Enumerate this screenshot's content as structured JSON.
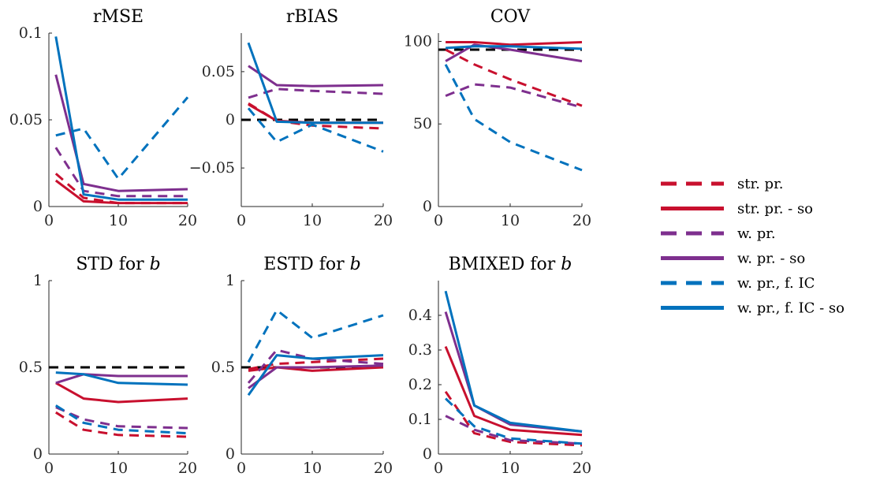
{
  "colors": {
    "str": "#c8102e",
    "w": "#7e2f8e",
    "ic": "#0072bd",
    "ref": "#000000"
  },
  "legend": [
    {
      "label": "str. pr.",
      "color": "str",
      "dash": true
    },
    {
      "label": "str. pr. - so",
      "color": "str",
      "dash": false
    },
    {
      "label": "w. pr.",
      "color": "w",
      "dash": true
    },
    {
      "label": "w. pr. - so",
      "color": "w",
      "dash": false
    },
    {
      "label": "w. pr., f. IC",
      "color": "ic",
      "dash": true
    },
    {
      "label": "w. pr., f. IC - so",
      "color": "ic",
      "dash": false
    }
  ],
  "chart_data": [
    {
      "type": "line",
      "title": "rMSE",
      "title_italic": "",
      "x": [
        1,
        5,
        10,
        20
      ],
      "xlim": [
        0,
        20
      ],
      "xticks": [
        0,
        10,
        20
      ],
      "ylim": [
        0,
        0.1
      ],
      "yticks": [
        0,
        0.05,
        0.1
      ],
      "ytick_labels": [
        "0",
        "0.05",
        "0.1"
      ],
      "series": [
        {
          "values": [
            0.019,
            0.005,
            0.002,
            0.002
          ],
          "color": "str",
          "dash": true
        },
        {
          "values": [
            0.015,
            0.003,
            0.002,
            0.002
          ],
          "color": "str",
          "dash": false
        },
        {
          "values": [
            0.034,
            0.009,
            0.006,
            0.006
          ],
          "color": "w",
          "dash": true
        },
        {
          "values": [
            0.076,
            0.013,
            0.009,
            0.01
          ],
          "color": "w",
          "dash": false
        },
        {
          "values": [
            0.041,
            0.045,
            0.016,
            0.063
          ],
          "color": "ic",
          "dash": true
        },
        {
          "values": [
            0.098,
            0.007,
            0.004,
            0.004
          ],
          "color": "ic",
          "dash": false
        }
      ]
    },
    {
      "type": "line",
      "title": "rBIAS",
      "title_italic": "",
      "x": [
        1,
        5,
        10,
        20
      ],
      "xlim": [
        0,
        20
      ],
      "xticks": [
        0,
        10,
        20
      ],
      "ylim": [
        -0.09,
        0.09
      ],
      "yticks": [
        -0.05,
        0,
        0.05
      ],
      "ytick_labels": [
        "−0.05",
        "0",
        "0.05"
      ],
      "ref_line": 0,
      "series": [
        {
          "values": [
            0.017,
            -0.001,
            -0.006,
            -0.009
          ],
          "color": "str",
          "dash": true
        },
        {
          "values": [
            0.016,
            -0.001,
            -0.003,
            -0.003
          ],
          "color": "str",
          "dash": false
        },
        {
          "values": [
            0.023,
            0.032,
            0.03,
            0.027
          ],
          "color": "w",
          "dash": true
        },
        {
          "values": [
            0.056,
            0.036,
            0.035,
            0.036
          ],
          "color": "w",
          "dash": false
        },
        {
          "values": [
            0.012,
            -0.023,
            -0.005,
            -0.033
          ],
          "color": "ic",
          "dash": true
        },
        {
          "values": [
            0.08,
            -0.002,
            -0.003,
            -0.003
          ],
          "color": "ic",
          "dash": false
        }
      ]
    },
    {
      "type": "line",
      "title": "COV",
      "title_italic": "",
      "x": [
        1,
        5,
        10,
        20
      ],
      "xlim": [
        0,
        20
      ],
      "xticks": [
        0,
        10,
        20
      ],
      "ylim": [
        0,
        105
      ],
      "yticks": [
        0,
        50,
        100
      ],
      "ytick_labels": [
        "0",
        "50",
        "100"
      ],
      "ref_line": 95,
      "series": [
        {
          "values": [
            95,
            86,
            77,
            61
          ],
          "color": "str",
          "dash": true
        },
        {
          "values": [
            99.5,
            99.5,
            98,
            99.5
          ],
          "color": "str",
          "dash": false
        },
        {
          "values": [
            67,
            74,
            72,
            60
          ],
          "color": "w",
          "dash": true
        },
        {
          "values": [
            88,
            98,
            95,
            88
          ],
          "color": "w",
          "dash": false
        },
        {
          "values": [
            86,
            53,
            39,
            22
          ],
          "color": "ic",
          "dash": true
        },
        {
          "values": [
            96,
            97,
            97,
            95.5
          ],
          "color": "ic",
          "dash": false
        }
      ]
    },
    {
      "type": "line",
      "title": "STD for ",
      "title_italic": "b",
      "x": [
        1,
        5,
        10,
        20
      ],
      "xlim": [
        0,
        20
      ],
      "xticks": [
        0,
        10,
        20
      ],
      "ylim": [
        0,
        1
      ],
      "yticks": [
        0,
        0.5,
        1
      ],
      "ytick_labels": [
        "0",
        "0.5",
        "1"
      ],
      "ref_line": 0.5,
      "series": [
        {
          "values": [
            0.24,
            0.14,
            0.11,
            0.1
          ],
          "color": "str",
          "dash": true
        },
        {
          "values": [
            0.41,
            0.32,
            0.3,
            0.32
          ],
          "color": "str",
          "dash": false
        },
        {
          "values": [
            0.27,
            0.2,
            0.16,
            0.15
          ],
          "color": "w",
          "dash": true
        },
        {
          "values": [
            0.41,
            0.46,
            0.45,
            0.45
          ],
          "color": "w",
          "dash": false
        },
        {
          "values": [
            0.28,
            0.18,
            0.14,
            0.12
          ],
          "color": "ic",
          "dash": true
        },
        {
          "values": [
            0.47,
            0.46,
            0.41,
            0.4
          ],
          "color": "ic",
          "dash": false
        }
      ]
    },
    {
      "type": "line",
      "title": "ESTD for ",
      "title_italic": "b",
      "x": [
        1,
        5,
        10,
        20
      ],
      "xlim": [
        0,
        20
      ],
      "xticks": [
        0,
        10,
        20
      ],
      "ylim": [
        0,
        1
      ],
      "yticks": [
        0,
        0.5,
        1
      ],
      "ytick_labels": [
        "0",
        "0.5",
        "1"
      ],
      "ref_line": 0.5,
      "series": [
        {
          "values": [
            0.49,
            0.52,
            0.53,
            0.55
          ],
          "color": "str",
          "dash": true
        },
        {
          "values": [
            0.48,
            0.5,
            0.48,
            0.5
          ],
          "color": "str",
          "dash": false
        },
        {
          "values": [
            0.41,
            0.6,
            0.55,
            0.52
          ],
          "color": "w",
          "dash": true
        },
        {
          "values": [
            0.38,
            0.5,
            0.5,
            0.51
          ],
          "color": "w",
          "dash": false
        },
        {
          "values": [
            0.53,
            0.83,
            0.67,
            0.8
          ],
          "color": "ic",
          "dash": true
        },
        {
          "values": [
            0.34,
            0.57,
            0.55,
            0.57
          ],
          "color": "ic",
          "dash": false
        }
      ]
    },
    {
      "type": "line",
      "title": "BMIXED for ",
      "title_italic": "b",
      "x": [
        1,
        5,
        10,
        20
      ],
      "xlim": [
        0,
        20
      ],
      "xticks": [
        0,
        10,
        20
      ],
      "ylim": [
        0,
        0.5
      ],
      "yticks": [
        0,
        0.1,
        0.2,
        0.3,
        0.4
      ],
      "ytick_labels": [
        "0",
        "0.1",
        "0.2",
        "0.3",
        "0.4"
      ],
      "series": [
        {
          "values": [
            0.18,
            0.06,
            0.035,
            0.025
          ],
          "color": "str",
          "dash": true
        },
        {
          "values": [
            0.31,
            0.11,
            0.07,
            0.055
          ],
          "color": "str",
          "dash": false
        },
        {
          "values": [
            0.11,
            0.07,
            0.04,
            0.03
          ],
          "color": "w",
          "dash": true
        },
        {
          "values": [
            0.41,
            0.14,
            0.085,
            0.065
          ],
          "color": "w",
          "dash": false
        },
        {
          "values": [
            0.16,
            0.08,
            0.045,
            0.03
          ],
          "color": "ic",
          "dash": true
        },
        {
          "values": [
            0.47,
            0.14,
            0.09,
            0.065
          ],
          "color": "ic",
          "dash": false
        }
      ]
    }
  ]
}
